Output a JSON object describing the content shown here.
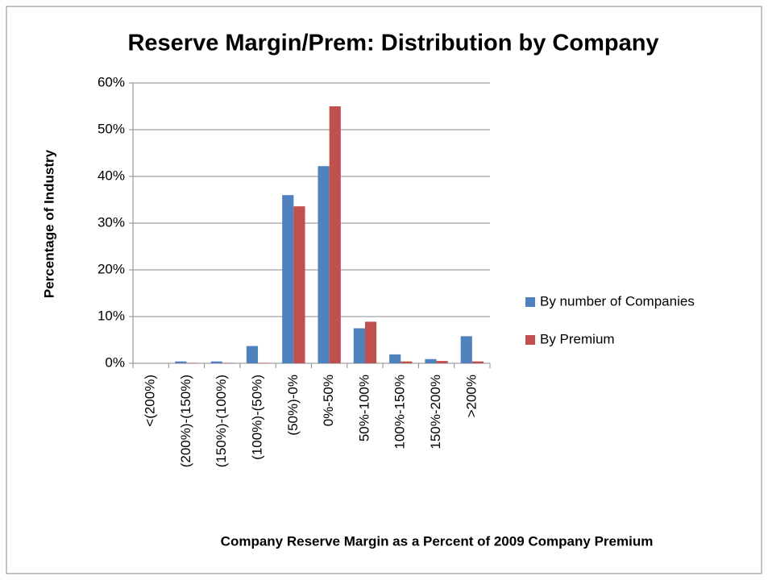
{
  "chart_data": {
    "type": "bar",
    "title": "Reserve Margin/Prem: Distribution by Company",
    "xlabel": "Company Reserve Margin  as a Percent of 2009 Company Premium",
    "ylabel": "Percentage of Industry",
    "categories": [
      "<(200%)",
      "(200%)-(150%)",
      "(150%)-(100%)",
      "(100%)-(50%)",
      "(50%)-0%",
      "0%-50%",
      "50%-100%",
      "100%-150%",
      "150%-200%",
      ">200%"
    ],
    "series": [
      {
        "name": "By number of Companies",
        "color": "#4f81bd",
        "values": [
          0,
          0.4,
          0.4,
          3.7,
          36,
          42.2,
          7.5,
          1.9,
          0.9,
          5.8
        ]
      },
      {
        "name": "By Premium",
        "color": "#c0504d",
        "values": [
          0,
          0.1,
          0.1,
          0.1,
          33.6,
          55,
          8.9,
          0.4,
          0.5,
          0.4
        ]
      }
    ],
    "ylim": [
      0,
      60
    ],
    "yticks": [
      {
        "value": 0,
        "label": "0%"
      },
      {
        "value": 10,
        "label": "10%"
      },
      {
        "value": 20,
        "label": "20%"
      },
      {
        "value": 30,
        "label": "30%"
      },
      {
        "value": 40,
        "label": "40%"
      },
      {
        "value": 50,
        "label": "50%"
      },
      {
        "value": 60,
        "label": "60%"
      }
    ],
    "grid": true,
    "legend": "right"
  }
}
